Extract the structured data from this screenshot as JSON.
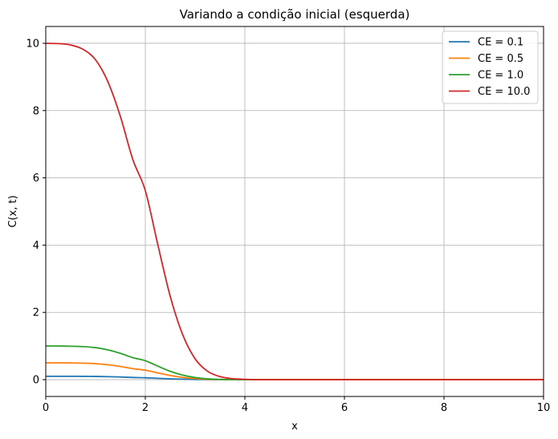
{
  "chart_data": {
    "type": "line",
    "title": "Variando a condição inicial (esquerda)",
    "xlabel": "x",
    "ylabel": "C(x, t)",
    "xlim": [
      0,
      10
    ],
    "ylim": [
      -0.5,
      10.5
    ],
    "xticks": [
      0,
      2,
      4,
      6,
      8,
      10
    ],
    "yticks": [
      0,
      2,
      4,
      6,
      8,
      10
    ],
    "grid": true,
    "legend_position": "top-right",
    "x": [
      0,
      0.25,
      0.5,
      0.75,
      1.0,
      1.25,
      1.5,
      1.75,
      2.0,
      2.25,
      2.5,
      2.75,
      3.0,
      3.25,
      3.5,
      3.75,
      4.0,
      4.25,
      4.5,
      5,
      6,
      7,
      8,
      9,
      10
    ],
    "series": [
      {
        "name": "CE = 0.1",
        "color": "#1f77b4",
        "values": [
          0.1,
          0.0999,
          0.0995,
          0.0982,
          0.0951,
          0.0885,
          0.0782,
          0.0654,
          0.0562,
          0.0402,
          0.0248,
          0.0134,
          0.0062,
          0.0025,
          0.0009,
          0.0003,
          0.0001,
          0,
          0,
          0,
          0,
          0,
          0,
          0,
          0
        ]
      },
      {
        "name": "CE = 0.5",
        "color": "#ff7f0e",
        "values": [
          0.5,
          0.4995,
          0.4975,
          0.491,
          0.4755,
          0.4425,
          0.391,
          0.327,
          0.281,
          0.201,
          0.124,
          0.067,
          0.031,
          0.0125,
          0.0045,
          0.0015,
          0.0005,
          0,
          0,
          0,
          0,
          0,
          0,
          0,
          0
        ]
      },
      {
        "name": "CE = 1.0",
        "color": "#2ca02c",
        "values": [
          1.0,
          0.999,
          0.995,
          0.982,
          0.951,
          0.885,
          0.782,
          0.654,
          0.562,
          0.402,
          0.248,
          0.134,
          0.062,
          0.025,
          0.009,
          0.003,
          0.001,
          0,
          0,
          0,
          0,
          0,
          0,
          0,
          0
        ]
      },
      {
        "name": "CE = 10.0",
        "color": "#d62728",
        "values": [
          10.0,
          9.99,
          9.95,
          9.82,
          9.51,
          8.85,
          7.82,
          6.54,
          5.62,
          4.02,
          2.48,
          1.34,
          0.62,
          0.25,
          0.09,
          0.03,
          0.01,
          0,
          0,
          0,
          0,
          0,
          0,
          0,
          0
        ]
      }
    ]
  }
}
